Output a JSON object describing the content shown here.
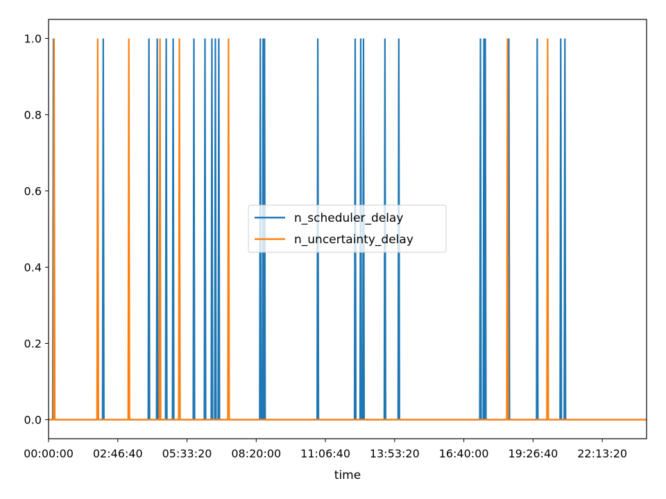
{
  "chart_data": {
    "type": "line",
    "title": "",
    "xlabel": "time",
    "ylabel": "",
    "x_unit": "seconds",
    "xlim": [
      0,
      86400
    ],
    "ylim": [
      -0.05,
      1.05
    ],
    "x_ticks": [
      {
        "value": 0,
        "label": "00:00:00"
      },
      {
        "value": 10000,
        "label": "02:46:40"
      },
      {
        "value": 20000,
        "label": "05:33:20"
      },
      {
        "value": 30000,
        "label": "08:20:00"
      },
      {
        "value": 40000,
        "label": "11:06:40"
      },
      {
        "value": 50000,
        "label": "13:53:20"
      },
      {
        "value": 60000,
        "label": "16:40:00"
      },
      {
        "value": 70000,
        "label": "19:26:40"
      },
      {
        "value": 80000,
        "label": "22:13:20"
      }
    ],
    "y_ticks": [
      {
        "value": 0.0,
        "label": "0.0"
      },
      {
        "value": 0.2,
        "label": "0.2"
      },
      {
        "value": 0.4,
        "label": "0.4"
      },
      {
        "value": 0.6,
        "label": "0.6"
      },
      {
        "value": 0.8,
        "label": "0.8"
      },
      {
        "value": 1.0,
        "label": "1.0"
      }
    ],
    "grid": false,
    "legend": {
      "placement": "center"
    },
    "series": [
      {
        "name": "n_scheduler_delay",
        "color": "#1f77b4",
        "spike_times": [
          700,
          7900,
          14500,
          15700,
          17000,
          18000,
          21000,
          22600,
          23600,
          24100,
          24600,
          30600,
          31000,
          31200,
          38900,
          44300,
          45100,
          45500,
          48600,
          50600,
          62400,
          62900,
          63100,
          66500,
          70600,
          74000,
          74600
        ]
      },
      {
        "name": "n_uncertainty_delay",
        "color": "#ff7f0e",
        "spike_times": [
          800,
          7100,
          11600,
          16100,
          18900,
          26000,
          66300,
          72100
        ]
      }
    ]
  }
}
